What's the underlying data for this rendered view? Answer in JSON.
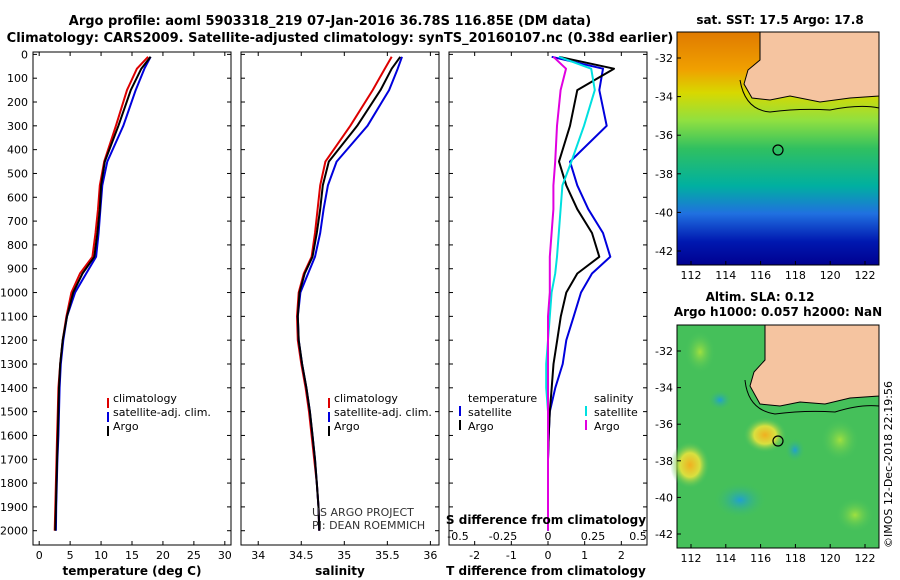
{
  "title": {
    "line1": "Argo profile: aoml 5903318_219 07-Jan-2016 36.78S 116.85E (DM data)",
    "line2": "Climatology: CARS2009. Satellite-adjusted climatology: synTS_20160107.nc (0.38d earlier)"
  },
  "colors": {
    "climatology": "#dd0000",
    "satellite": "#0000dd",
    "argo": "#000000",
    "cyan": "#00e0e0",
    "magenta": "#e000e0",
    "land": "#f5c4a0"
  },
  "chart_data": [
    {
      "type": "line",
      "name": "temperature",
      "xlabel": "temperature (deg C)",
      "ylabel": "",
      "xlim": [
        -1,
        31
      ],
      "ylim": [
        2060,
        -10
      ],
      "xticks": [
        "0",
        "5",
        "10",
        "15",
        "20",
        "25",
        "30"
      ],
      "yticks": [
        "0",
        "100",
        "200",
        "300",
        "400",
        "500",
        "600",
        "700",
        "800",
        "900",
        "1000",
        "1100",
        "1200",
        "1300",
        "1400",
        "1500",
        "1600",
        "1700",
        "1800",
        "1900",
        "2000"
      ],
      "series": [
        {
          "name": "climatology",
          "color": "#dd0000",
          "x": [
            17.6,
            15.8,
            14.2,
            12.4,
            10.5,
            9.8,
            9.5,
            9.1,
            8.6,
            6.6,
            5.2,
            4.4,
            3.8,
            3.4,
            3.1,
            3.0,
            2.9,
            2.8,
            2.7,
            2.6,
            2.5
          ],
          "y": [
            10,
            60,
            150,
            300,
            450,
            550,
            650,
            750,
            850,
            920,
            1000,
            1100,
            1200,
            1300,
            1400,
            1500,
            1600,
            1700,
            1800,
            1900,
            2000
          ]
        },
        {
          "name": "satellite-adj. clim.",
          "color": "#0000dd",
          "x": [
            18.0,
            17.0,
            15.6,
            13.6,
            11.0,
            10.2,
            9.9,
            9.6,
            9.2,
            7.6,
            5.8,
            4.5,
            3.9,
            3.5,
            3.3,
            3.2,
            3.1,
            2.95,
            2.85,
            2.75,
            2.7
          ],
          "y": [
            10,
            60,
            150,
            300,
            450,
            550,
            650,
            750,
            850,
            920,
            1000,
            1100,
            1200,
            1300,
            1400,
            1500,
            1600,
            1700,
            1800,
            1900,
            2000
          ]
        },
        {
          "name": "Argo",
          "color": "#000000",
          "x": [
            18.0,
            16.5,
            14.8,
            12.8,
            10.6,
            10.0,
            9.8,
            9.4,
            8.9,
            7.0,
            5.5,
            4.5,
            3.8,
            3.4,
            3.2,
            3.1,
            3.0,
            2.9,
            2.8,
            2.7,
            2.6
          ],
          "y": [
            10,
            60,
            150,
            300,
            450,
            550,
            650,
            750,
            850,
            920,
            1000,
            1100,
            1200,
            1300,
            1400,
            1500,
            1600,
            1700,
            1800,
            1900,
            2000
          ]
        }
      ],
      "legend": [
        "climatology",
        "satellite-adj. clim.",
        "Argo"
      ]
    },
    {
      "type": "line",
      "name": "salinity",
      "xlabel": "salinity",
      "ylabel": "",
      "xlim": [
        33.8,
        36.1
      ],
      "ylim": [
        2060,
        -10
      ],
      "xticks": [
        "34",
        "34.5",
        "35",
        "35.5",
        "36"
      ],
      "series": [
        {
          "name": "climatology",
          "color": "#dd0000",
          "x": [
            35.55,
            35.47,
            35.33,
            35.07,
            34.78,
            34.72,
            34.69,
            34.66,
            34.62,
            34.53,
            34.47,
            34.45,
            34.46,
            34.5,
            34.55,
            34.59,
            34.62,
            34.65,
            34.68,
            34.7,
            34.71
          ],
          "y": [
            10,
            60,
            150,
            300,
            450,
            550,
            650,
            750,
            850,
            920,
            1000,
            1100,
            1200,
            1300,
            1400,
            1500,
            1600,
            1700,
            1800,
            1900,
            2000
          ]
        },
        {
          "name": "satellite-adj. clim.",
          "color": "#0000dd",
          "x": [
            35.67,
            35.62,
            35.52,
            35.27,
            34.91,
            34.81,
            34.76,
            34.72,
            34.66,
            34.58,
            34.49,
            34.46,
            34.47,
            34.51,
            34.56,
            34.6,
            34.63,
            34.66,
            34.68,
            34.7,
            34.71
          ],
          "y": [
            10,
            60,
            150,
            300,
            450,
            550,
            650,
            750,
            850,
            920,
            1000,
            1100,
            1200,
            1300,
            1400,
            1500,
            1600,
            1700,
            1800,
            1900,
            2000
          ]
        },
        {
          "name": "Argo",
          "color": "#000000",
          "x": [
            35.65,
            35.55,
            35.42,
            35.15,
            34.82,
            34.75,
            34.72,
            34.68,
            34.63,
            34.54,
            34.48,
            34.46,
            34.47,
            34.51,
            34.56,
            34.6,
            34.63,
            34.66,
            34.68,
            34.7,
            34.71
          ],
          "y": [
            10,
            60,
            150,
            300,
            450,
            550,
            650,
            750,
            850,
            920,
            1000,
            1100,
            1200,
            1300,
            1400,
            1500,
            1600,
            1700,
            1800,
            1900,
            2000
          ]
        }
      ],
      "legend": [
        "climatology",
        "satellite-adj. clim.",
        "Argo"
      ],
      "annotation": [
        "US ARGO PROJECT",
        "PI: DEAN ROEMMICH"
      ]
    },
    {
      "type": "line",
      "name": "differences",
      "xlabel": "T difference from climatology",
      "xlabel_top": "S difference from climatology",
      "xlim": [
        -2.7,
        2.7
      ],
      "ylim": [
        2060,
        -10
      ],
      "xticks": [
        "-2",
        "-1",
        "0",
        "1",
        "2"
      ],
      "xticks_s": [
        "-0.5",
        "-0.25",
        "0",
        "0.25",
        "0.5"
      ],
      "series": [
        {
          "name": "T satellite",
          "color": "#0000dd",
          "x": [
            0.1,
            1.5,
            1.4,
            1.6,
            0.6,
            0.8,
            1.1,
            1.5,
            1.7,
            1.2,
            0.9,
            0.7,
            0.5,
            0.4,
            0.2,
            0.05,
            0.02,
            0.0,
            0.0,
            0.0,
            0.0
          ],
          "y": [
            10,
            60,
            150,
            300,
            450,
            550,
            650,
            750,
            850,
            920,
            1000,
            1100,
            1200,
            1300,
            1400,
            1500,
            1600,
            1700,
            1800,
            1900,
            2000
          ]
        },
        {
          "name": "T Argo",
          "color": "#000000",
          "x": [
            0.3,
            1.8,
            0.8,
            0.6,
            0.3,
            0.5,
            0.8,
            1.2,
            1.4,
            0.8,
            0.5,
            0.35,
            0.25,
            0.15,
            0.1,
            0.05,
            0.02,
            0.0,
            0.0,
            0.0,
            0.0
          ],
          "y": [
            10,
            60,
            150,
            300,
            450,
            550,
            650,
            750,
            850,
            920,
            1000,
            1100,
            1200,
            1300,
            1400,
            1500,
            1600,
            1700,
            1800,
            1900,
            2000
          ]
        },
        {
          "name": "S satellite",
          "color": "#00e0e0",
          "x": [
            0.06,
            0.24,
            0.26,
            0.2,
            0.13,
            0.08,
            0.07,
            0.06,
            0.05,
            0.04,
            0.02,
            0.01,
            0.0,
            -0.01,
            -0.01,
            0.0,
            0.0,
            0.0,
            0.0,
            0.0,
            0.0
          ],
          "y": [
            10,
            60,
            150,
            300,
            450,
            550,
            650,
            750,
            850,
            920,
            1000,
            1100,
            1200,
            1300,
            1400,
            1500,
            1600,
            1700,
            1800,
            1900,
            2000
          ]
        },
        {
          "name": "S Argo",
          "color": "#e000e0",
          "x": [
            0.03,
            0.1,
            0.07,
            0.05,
            0.04,
            0.03,
            0.03,
            0.02,
            0.01,
            0.01,
            0.01,
            0.0,
            0.0,
            0.0,
            0.0,
            0.0,
            0.0,
            0.0,
            0.0,
            0.0,
            0.0
          ],
          "y": [
            10,
            60,
            150,
            300,
            450,
            550,
            650,
            750,
            850,
            920,
            1000,
            1100,
            1200,
            1300,
            1400,
            1500,
            1600,
            1700,
            1800,
            1900,
            2000
          ]
        }
      ],
      "legend": {
        "left_title": "temperature",
        "right_title": "salinity",
        "left": [
          "satellite",
          "Argo"
        ],
        "right": [
          "satellite",
          "Argo"
        ]
      }
    }
  ],
  "maps": {
    "sst": {
      "title": "sat. SST: 17.5 Argo: 17.8",
      "lat_labels": [
        "-32",
        "-34",
        "-36",
        "-38",
        "-40",
        "-42"
      ],
      "lon_labels": [
        "112",
        "114",
        "116",
        "118",
        "120",
        "122"
      ]
    },
    "sla": {
      "title1": "Altim. SLA: 0.12",
      "title2": "Argo h1000: 0.057 h2000: NaN",
      "lat_labels": [
        "-32",
        "-34",
        "-36",
        "-38",
        "-40",
        "-42"
      ],
      "lon_labels": [
        "112",
        "114",
        "116",
        "118",
        "120",
        "122"
      ]
    }
  },
  "credit": "©IMOS 12-Dec-2018 22:19:56"
}
